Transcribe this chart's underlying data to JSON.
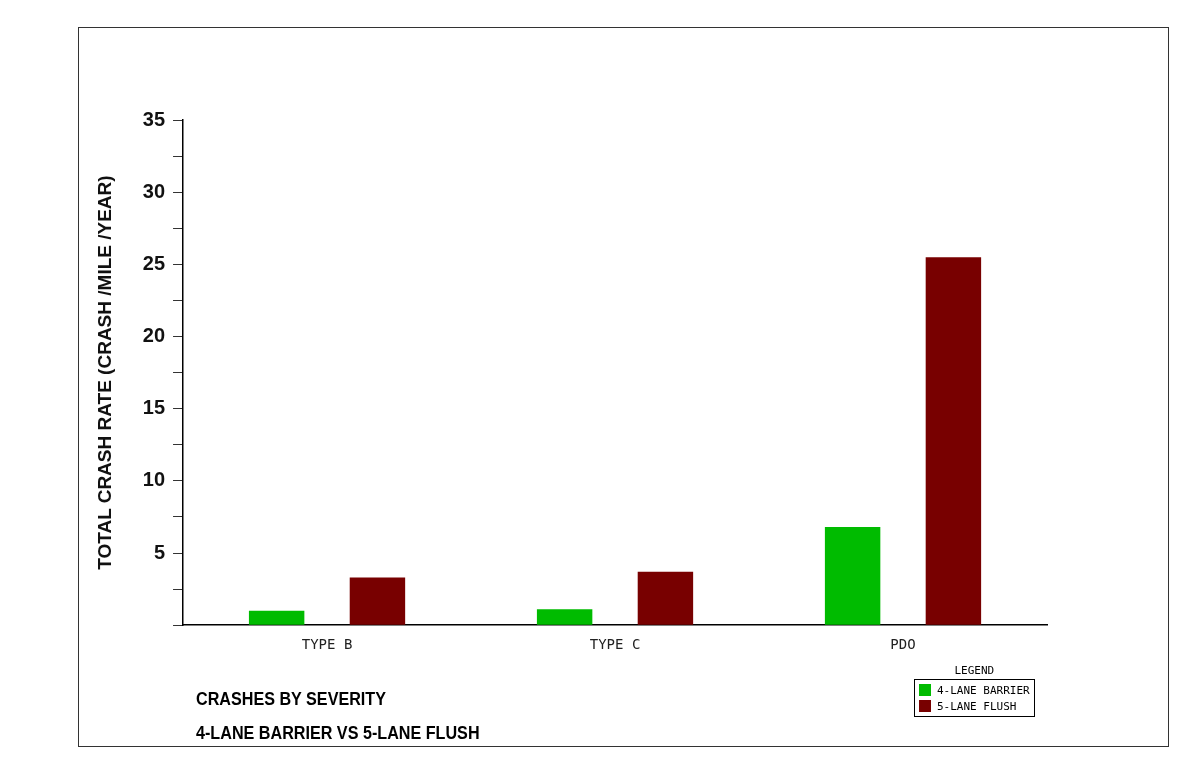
{
  "chart_data": {
    "type": "bar",
    "title": "CRASHES BY SEVERITY",
    "subtitle": "4-LANE BARRIER VS 5-LANE FLUSH",
    "ylabel": "TOTAL CRASH RATE (CRASH /MILE /YEAR)",
    "legend_title": "LEGEND",
    "legend": "bottom right",
    "grid": false,
    "categories": [
      "TYPE B",
      "TYPE C",
      "PDO"
    ],
    "series": [
      {
        "name": "4-LANE BARRIER",
        "color": "#00bb00",
        "values": [
          1.0,
          1.1,
          6.8
        ]
      },
      {
        "name": "5-LANE FLUSH",
        "color": "#780000",
        "values": [
          3.3,
          3.7,
          25.5
        ]
      }
    ],
    "ylim": [
      0,
      35
    ],
    "yticks": [
      {
        "value": 0,
        "label": null
      },
      {
        "value": 2.5,
        "label": null
      },
      5,
      {
        "value": 7.5,
        "label": null
      },
      10,
      {
        "value": 12.5,
        "label": null
      },
      15,
      {
        "value": 17.5,
        "label": null
      },
      20,
      {
        "value": 22.5,
        "label": null
      },
      25,
      {
        "value": 27.5,
        "label": null
      },
      30,
      {
        "value": 32.5,
        "label": null
      },
      35
    ]
  }
}
